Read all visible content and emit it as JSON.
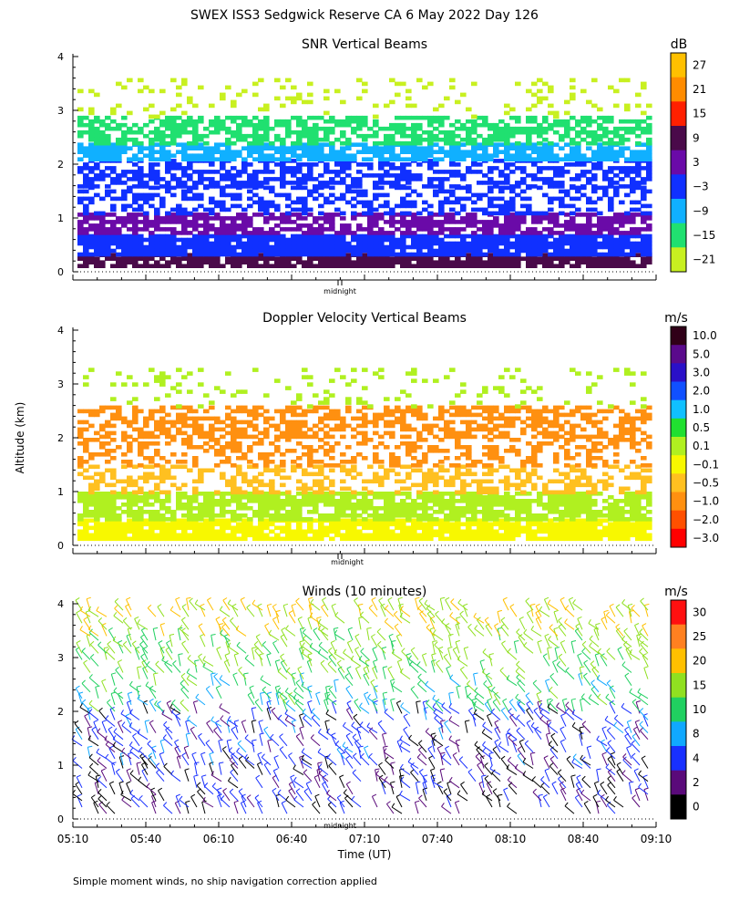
{
  "figure_title": "SWEX ISS3 Sedgwick Reserve CA   6 May 2022 Day 126",
  "ylabel": "Altitude (km)",
  "xlabel": "Time (UT)",
  "footnote": "Simple moment winds, no ship navigation correction applied",
  "midnight_label": "midnight",
  "chart_data": [
    {
      "type": "heatmap",
      "title": "SNR Vertical Beams",
      "ylim": [
        0,
        4
      ],
      "yticks": [
        "0",
        "1",
        "2",
        "3",
        "4"
      ],
      "xlim": [
        "05:10",
        "09:10"
      ],
      "colorbar_unit": "dB",
      "colorbar_labels": [
        "27",
        "21",
        "15",
        "9",
        "3",
        "−3",
        "−9",
        "−15",
        "−21"
      ],
      "colorbar_colors": [
        "#ffc000",
        "#ff8c00",
        "#ff2000",
        "#4a0a4a",
        "#6a0aa8",
        "#1030ff",
        "#10b0ff",
        "#20e070",
        "#c8f020"
      ],
      "layers": [
        {
          "from_km": 0.1,
          "to_km": 0.35,
          "color": "#4a0a4a",
          "fill": 0.85
        },
        {
          "from_km": 0.35,
          "to_km": 0.7,
          "color": "#1030ff",
          "fill": 0.9
        },
        {
          "from_km": 0.7,
          "to_km": 1.1,
          "color": "#6a0aa8",
          "fill": 0.7
        },
        {
          "from_km": 1.1,
          "to_km": 1.6,
          "color": "#1030ff",
          "fill": 0.45
        },
        {
          "from_km": 1.6,
          "to_km": 2.1,
          "color": "#1030ff",
          "fill": 0.55
        },
        {
          "from_km": 2.1,
          "to_km": 2.4,
          "color": "#10b0ff",
          "fill": 0.75
        },
        {
          "from_km": 2.4,
          "to_km": 2.9,
          "color": "#20e070",
          "fill": 0.6
        },
        {
          "from_km": 2.9,
          "to_km": 3.6,
          "color": "#c8f020",
          "fill": 0.12
        }
      ]
    },
    {
      "type": "heatmap",
      "title": "Doppler Velocity Vertical Beams",
      "ylim": [
        0,
        4
      ],
      "yticks": [
        "0",
        "1",
        "2",
        "3",
        "4"
      ],
      "xlim": [
        "05:10",
        "09:10"
      ],
      "colorbar_unit": "m/s",
      "colorbar_labels": [
        "10.0",
        "5.0",
        "3.0",
        "2.0",
        "1.0",
        "0.5",
        "0.1",
        "−0.1",
        "−0.5",
        "−1.0",
        "−2.0",
        "−3.0"
      ],
      "colorbar_colors": [
        "#300018",
        "#5a0a8c",
        "#2a10c8",
        "#1050ff",
        "#10c0ff",
        "#20e030",
        "#b0f020",
        "#f8f800",
        "#ffc020",
        "#ff9010",
        "#ff5000",
        "#ff0000"
      ],
      "layers": [
        {
          "from_km": 0.1,
          "to_km": 0.5,
          "color": "#f8f800",
          "fill": 0.9
        },
        {
          "from_km": 0.5,
          "to_km": 1.0,
          "color": "#b0f020",
          "fill": 0.75
        },
        {
          "from_km": 1.0,
          "to_km": 1.5,
          "color": "#ffc020",
          "fill": 0.45
        },
        {
          "from_km": 1.5,
          "to_km": 2.0,
          "color": "#ff9010",
          "fill": 0.35
        },
        {
          "from_km": 2.0,
          "to_km": 2.6,
          "color": "#ff9010",
          "fill": 0.55
        },
        {
          "from_km": 2.6,
          "to_km": 3.3,
          "color": "#b0f020",
          "fill": 0.12
        }
      ]
    },
    {
      "type": "scatter",
      "title": "Winds (10 minutes)",
      "ylim": [
        0,
        4
      ],
      "yticks": [
        "0",
        "1",
        "2",
        "3",
        "4"
      ],
      "xlim": [
        "05:10",
        "09:10"
      ],
      "xticks": [
        "05:10",
        "05:40",
        "06:10",
        "06:40",
        "07:10",
        "07:40",
        "08:10",
        "08:40",
        "09:10"
      ],
      "colorbar_unit": "m/s",
      "colorbar_labels": [
        "30",
        "25",
        "20",
        "15",
        "10",
        "8",
        "4",
        "2",
        "0"
      ],
      "colorbar_colors": [
        "#ff1010",
        "#ff8020",
        "#ffc000",
        "#90e020",
        "#20d060",
        "#10a8ff",
        "#1830ff",
        "#5a0a7a",
        "#000000"
      ],
      "profiles": [
        {
          "layer": [
            0.1,
            1.0
          ],
          "speed_m_s": 3
        },
        {
          "layer": [
            1.0,
            2.0
          ],
          "speed_m_s": 5
        },
        {
          "layer": [
            2.0,
            2.6
          ],
          "speed_m_s": 12
        },
        {
          "layer": [
            2.6,
            3.4
          ],
          "speed_m_s": 16
        },
        {
          "layer": [
            3.4,
            4.0
          ],
          "speed_m_s": 20
        }
      ]
    }
  ]
}
